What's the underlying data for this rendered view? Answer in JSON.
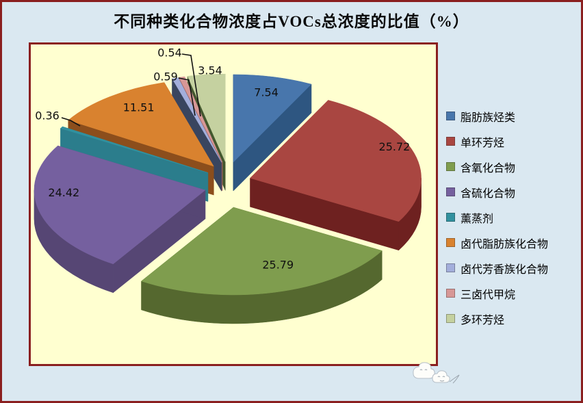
{
  "page": {
    "background": "#DAE8F1",
    "plot_background": "#FFFFD0",
    "frame_color": "#8A1F1F"
  },
  "chart_data": {
    "type": "pie",
    "projection": "3d-exploded",
    "title": "不同种类化合物浓度占VOCs总浓度的比值（%）",
    "unit": "%",
    "direction": "clockwise",
    "start_angle_deg": 0,
    "legend_position": "right",
    "slices": [
      {
        "label": "脂肪族烃类",
        "value": 7.54,
        "color": "#4876AC",
        "side_color": "#2E5681"
      },
      {
        "label": "单环芳烃",
        "value": 25.72,
        "color": "#A94641",
        "side_color": "#6E2120"
      },
      {
        "label": "含氧化合物",
        "value": 25.79,
        "color": "#7F9D4E",
        "side_color": "#55682F"
      },
      {
        "label": "含硫化合物",
        "value": 24.42,
        "color": "#75609F",
        "side_color": "#564674"
      },
      {
        "label": "薰蒸剂",
        "value": 0.36,
        "color": "#31919F",
        "side_color": "#2B7D8C"
      },
      {
        "label": "卤代脂肪族化合物",
        "value": 11.51,
        "color": "#D9822F",
        "side_color": "#8C4E1C"
      },
      {
        "label": "卤代芳香族化合物",
        "value": 0.59,
        "color": "#A3AEDB",
        "side_color": "#39455F"
      },
      {
        "label": "三卤代甲烷",
        "value": 0.54,
        "color": "#D79796",
        "side_color": "#9E615E"
      },
      {
        "label": "多环芳烃",
        "value": 3.54,
        "color": "#C5D1A0",
        "side_color": "#44582F"
      }
    ]
  },
  "watermark": {
    "icon": "cloud-mascot"
  }
}
